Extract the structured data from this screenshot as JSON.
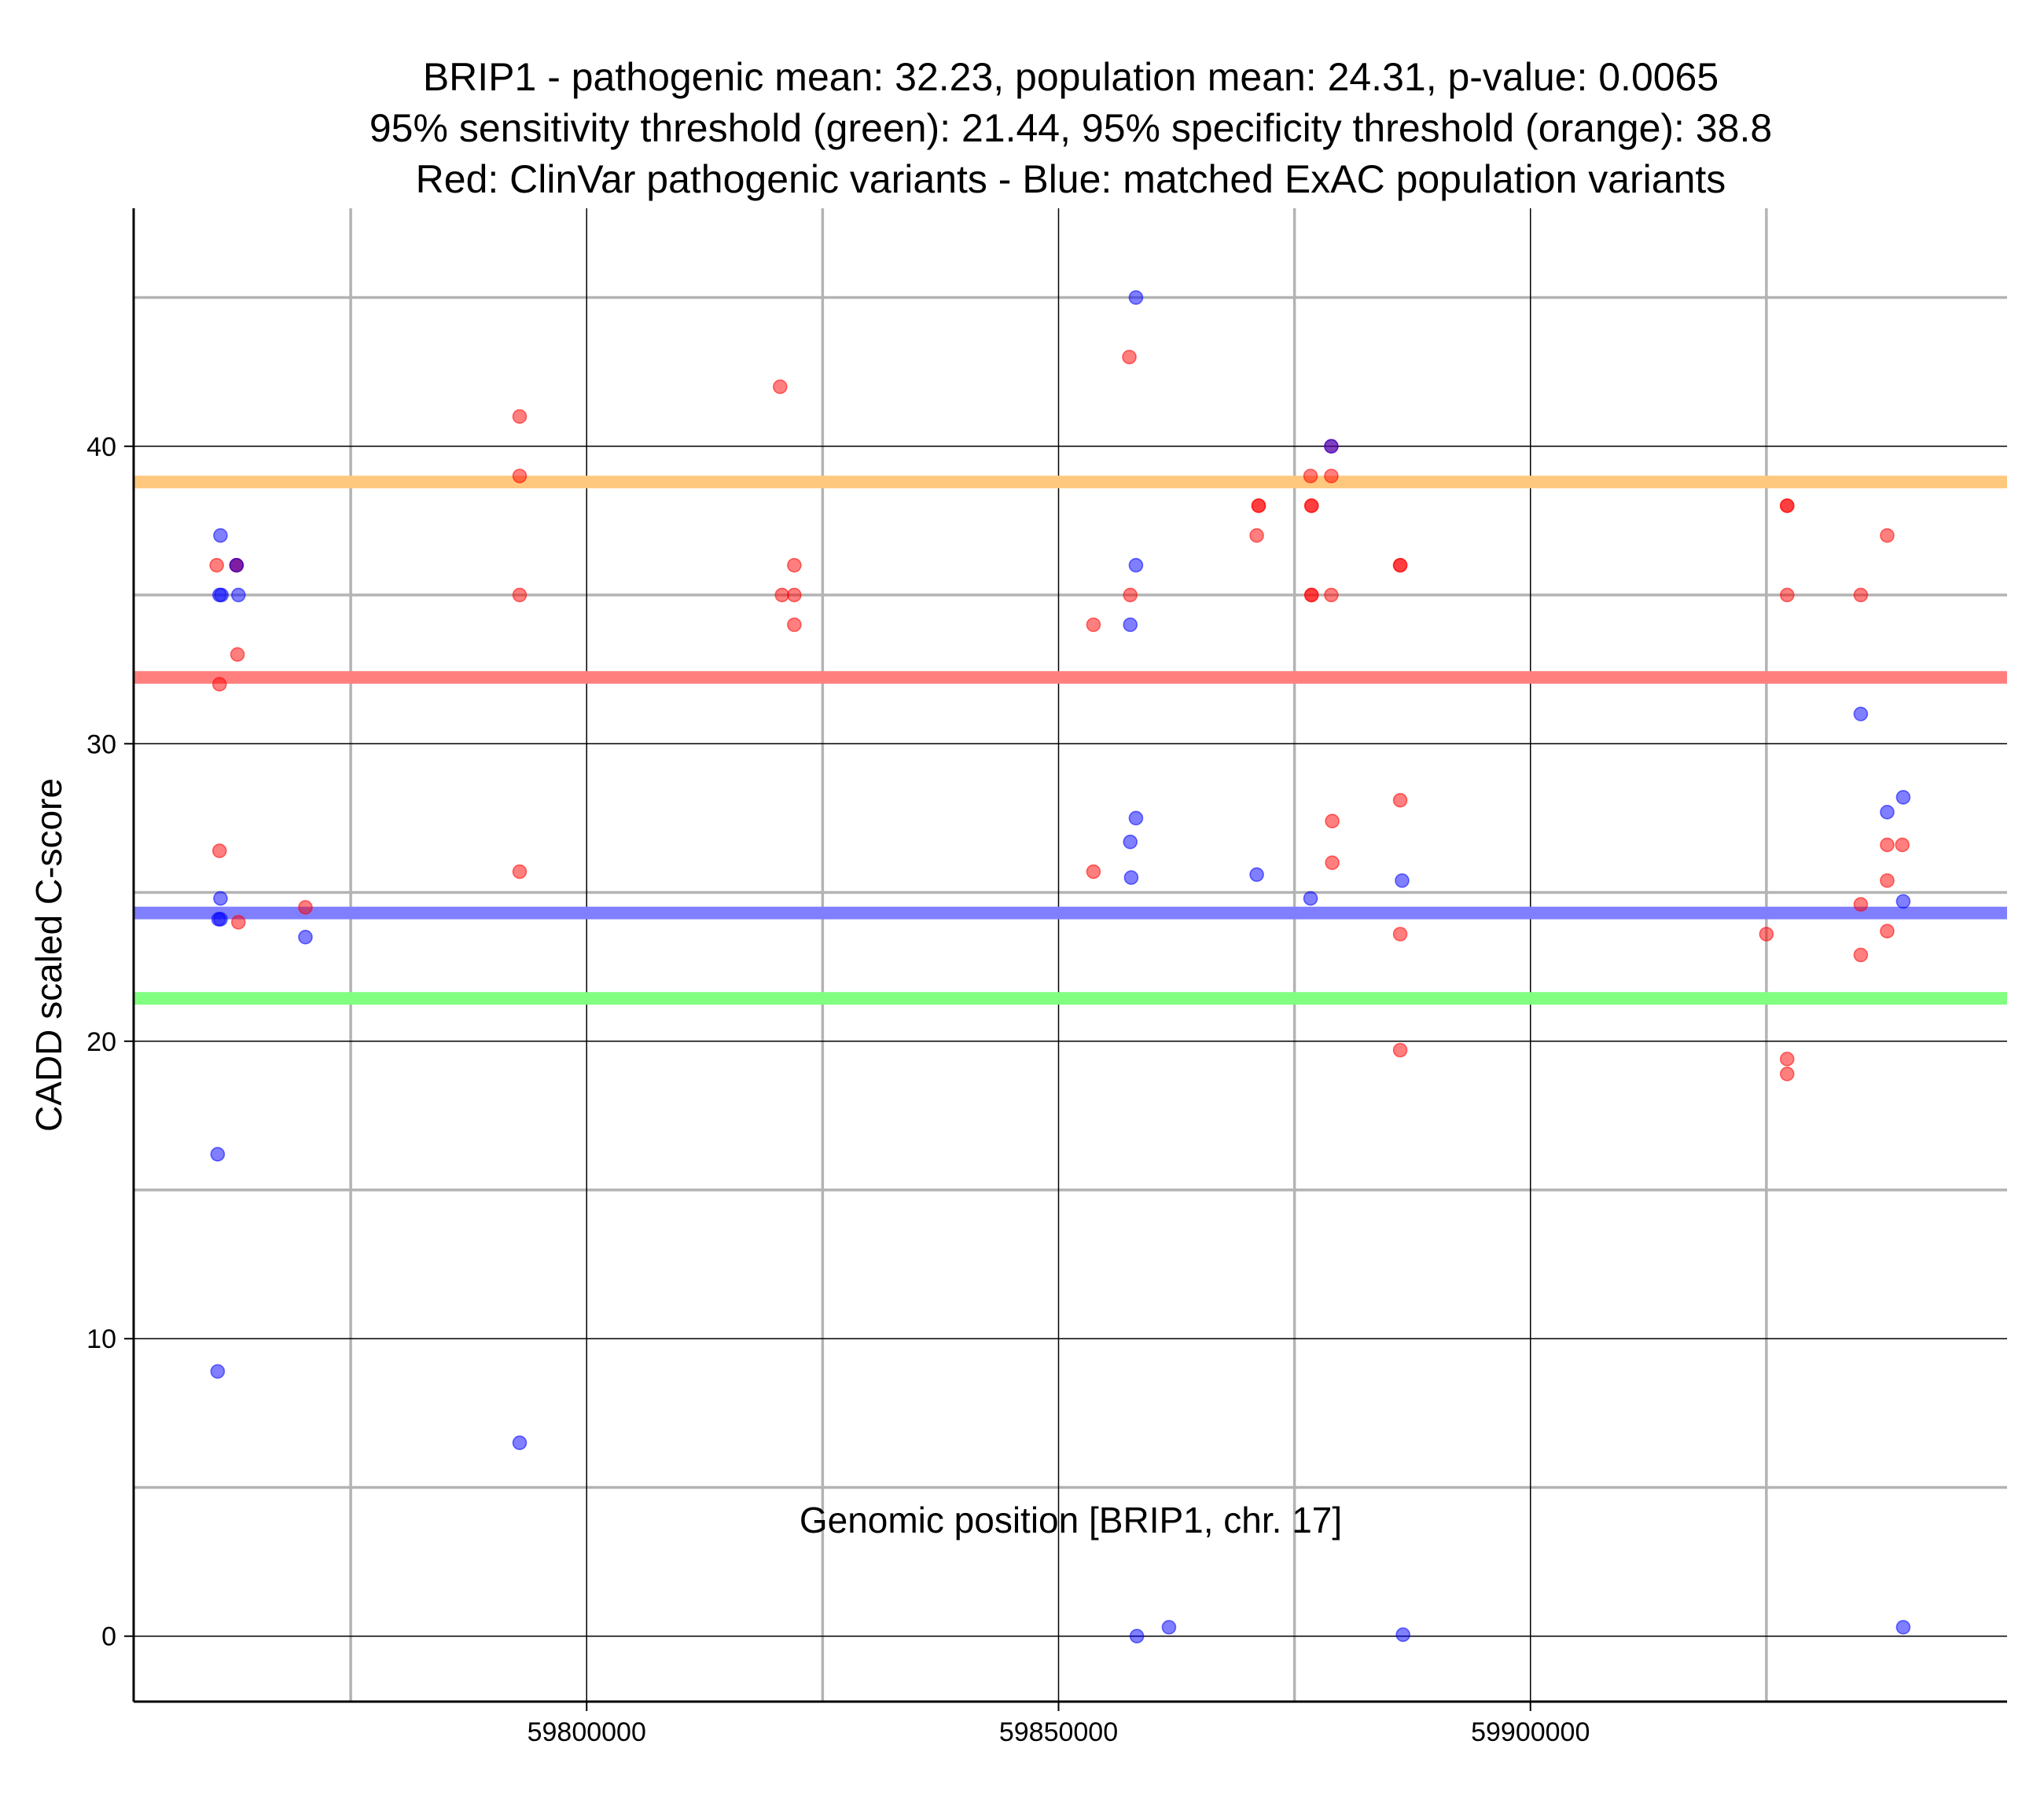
{
  "chart_data": {
    "type": "scatter",
    "title_lines": [
      "BRIP1 - pathogenic mean: 32.23, population mean: 24.31, p-value: 0.0065",
      "95% sensitivity threshold (green): 21.44, 95% specificity threshold (orange): 38.8",
      "Red: ClinVar pathogenic variants - Blue: matched ExAC population variants"
    ],
    "xlabel": "Genomic position [BRIP1, chr. 17]",
    "ylabel": "CADD scaled C-score",
    "xlim": [
      59752000,
      59950500
    ],
    "ylim": [
      -2.2,
      48.0
    ],
    "x_ticks": [
      59800000,
      59850000,
      59900000
    ],
    "x_tick_labels": [
      "59800000",
      "59850000",
      "59900000"
    ],
    "x_minor_grid": [
      59775000,
      59825000,
      59875000,
      59925000
    ],
    "y_ticks": [
      0,
      10,
      20,
      30,
      40
    ],
    "y_tick_labels": [
      "0",
      "10",
      "20",
      "30",
      "40"
    ],
    "y_minor_grid": [
      5,
      15,
      25,
      35,
      45
    ],
    "colors": {
      "pathogenic": "#ff0000",
      "population": "#0000ff",
      "pathogenic_mean": "#ff7f7f",
      "population_mean": "#7f7fff",
      "sensitivity": "#80ff80",
      "specificity": "#ffc87f",
      "major_grid": "#000000",
      "minor_grid": "#b3b3b3"
    },
    "hlines": [
      {
        "name": "specificity-threshold-line",
        "value": 38.8,
        "color": "#ffc87f"
      },
      {
        "name": "pathogenic-mean-line",
        "value": 32.23,
        "color": "#ff7f7f"
      },
      {
        "name": "population-mean-line",
        "value": 24.31,
        "color": "#7f7fff"
      },
      {
        "name": "sensitivity-threshold-line",
        "value": 21.44,
        "color": "#80ff80"
      }
    ],
    "series": [
      {
        "name": "ClinVar pathogenic variants",
        "color": "#ff0000",
        "points": [
          [
            59760800,
            36
          ],
          [
            59761100,
            32
          ],
          [
            59761100,
            26.4
          ],
          [
            59762900,
            36
          ],
          [
            59762900,
            36
          ],
          [
            59763000,
            33
          ],
          [
            59763100,
            24
          ],
          [
            59770200,
            24.5
          ],
          [
            59792900,
            41
          ],
          [
            59792900,
            39
          ],
          [
            59792900,
            35
          ],
          [
            59792900,
            25.7
          ],
          [
            59820500,
            42
          ],
          [
            59820700,
            35
          ],
          [
            59822000,
            36
          ],
          [
            59822000,
            35
          ],
          [
            59822000,
            34
          ],
          [
            59853700,
            34
          ],
          [
            59853700,
            25.7
          ],
          [
            59857500,
            43
          ],
          [
            59857600,
            35
          ],
          [
            59871200,
            38
          ],
          [
            59871200,
            38
          ],
          [
            59871000,
            37
          ],
          [
            59876700,
            39
          ],
          [
            59876800,
            38
          ],
          [
            59876800,
            38
          ],
          [
            59876800,
            35
          ],
          [
            59876800,
            35
          ],
          [
            59878900,
            40
          ],
          [
            59878900,
            39
          ],
          [
            59878900,
            35
          ],
          [
            59879000,
            27.4
          ],
          [
            59879000,
            26
          ],
          [
            59886200,
            36
          ],
          [
            59886200,
            36
          ],
          [
            59886200,
            28.1
          ],
          [
            59886200,
            23.6
          ],
          [
            59886200,
            19.7
          ],
          [
            59925000,
            23.6
          ],
          [
            59927200,
            38
          ],
          [
            59927200,
            38
          ],
          [
            59927200,
            35
          ],
          [
            59927200,
            19.4
          ],
          [
            59927200,
            18.9
          ],
          [
            59935000,
            35
          ],
          [
            59935000,
            24.6
          ],
          [
            59935000,
            22.9
          ],
          [
            59937800,
            37
          ],
          [
            59937800,
            26.6
          ],
          [
            59937800,
            25.4
          ],
          [
            59937800,
            23.7
          ],
          [
            59939400,
            26.6
          ]
        ]
      },
      {
        "name": "matched ExAC population variants",
        "color": "#0000ff",
        "points": [
          [
            59761200,
            37
          ],
          [
            59761100,
            35
          ],
          [
            59761300,
            35
          ],
          [
            59763100,
            35
          ],
          [
            59762900,
            36
          ],
          [
            59761200,
            24.8
          ],
          [
            59761000,
            24.1
          ],
          [
            59761200,
            24.1
          ],
          [
            59770200,
            23.5
          ],
          [
            59760900,
            16.2
          ],
          [
            59760900,
            8.9
          ],
          [
            59792900,
            6.5
          ],
          [
            59858200,
            45
          ],
          [
            59858200,
            36
          ],
          [
            59857600,
            34
          ],
          [
            59858200,
            27.5
          ],
          [
            59857600,
            26.7
          ],
          [
            59857700,
            25.5
          ],
          [
            59858300,
            0
          ],
          [
            59861700,
            0.3
          ],
          [
            59871000,
            25.6
          ],
          [
            59878900,
            40
          ],
          [
            59876700,
            24.8
          ],
          [
            59886400,
            25.4
          ],
          [
            59886500,
            0.05
          ],
          [
            59935000,
            31
          ],
          [
            59937800,
            27.7
          ],
          [
            59939500,
            28.2
          ],
          [
            59939500,
            24.7
          ],
          [
            59939500,
            0.3
          ]
        ]
      }
    ]
  }
}
